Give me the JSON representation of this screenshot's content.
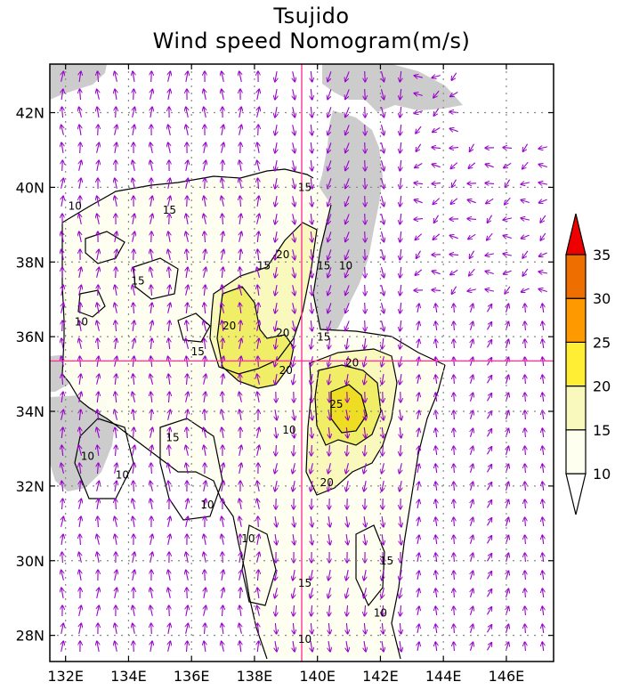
{
  "title": "Tsujido",
  "subtitle": "Wind speed Nomogram(m/s)",
  "map": {
    "lon_range": [
      131.5,
      147.5
    ],
    "lat_range": [
      27.3,
      43.3
    ],
    "x_ticks": [
      {
        "value": 132,
        "label": "132E"
      },
      {
        "value": 134,
        "label": "134E"
      },
      {
        "value": 136,
        "label": "136E"
      },
      {
        "value": 138,
        "label": "138E"
      },
      {
        "value": 140,
        "label": "140E"
      },
      {
        "value": 142,
        "label": "142E"
      },
      {
        "value": 144,
        "label": "144E"
      },
      {
        "value": 146,
        "label": "146E"
      }
    ],
    "y_ticks": [
      {
        "value": 28,
        "label": "28N"
      },
      {
        "value": 30,
        "label": "30N"
      },
      {
        "value": 32,
        "label": "32N"
      },
      {
        "value": 34,
        "label": "34N"
      },
      {
        "value": 36,
        "label": "36N"
      },
      {
        "value": 38,
        "label": "38N"
      },
      {
        "value": 40,
        "label": "40N"
      },
      {
        "value": 42,
        "label": "42N"
      }
    ],
    "gridlines": "dotted",
    "crosshair": {
      "lon": 139.5,
      "lat": 35.35,
      "color": "#ff3399"
    },
    "land_color": "#cccccc",
    "vector_color": "#9900cc",
    "contour_labels": [
      {
        "text": "10",
        "lon": 132.3,
        "lat": 39.4
      },
      {
        "text": "15",
        "lon": 135.3,
        "lat": 39.3
      },
      {
        "text": "15",
        "lon": 139.6,
        "lat": 39.9
      },
      {
        "text": "15",
        "lon": 138.3,
        "lat": 37.8
      },
      {
        "text": "20",
        "lon": 138.9,
        "lat": 38.1
      },
      {
        "text": "15",
        "lon": 140.2,
        "lat": 37.8
      },
      {
        "text": "10",
        "lon": 140.9,
        "lat": 37.8
      },
      {
        "text": "15",
        "lon": 134.3,
        "lat": 37.4
      },
      {
        "text": "10",
        "lon": 132.5,
        "lat": 36.3
      },
      {
        "text": "20",
        "lon": 137.2,
        "lat": 36.2
      },
      {
        "text": "20",
        "lon": 138.9,
        "lat": 36.0
      },
      {
        "text": "15",
        "lon": 136.2,
        "lat": 35.5
      },
      {
        "text": "15",
        "lon": 140.2,
        "lat": 35.9
      },
      {
        "text": "20",
        "lon": 139.0,
        "lat": 35.0
      },
      {
        "text": "20",
        "lon": 141.1,
        "lat": 35.2
      },
      {
        "text": "25",
        "lon": 140.6,
        "lat": 34.1
      },
      {
        "text": "15",
        "lon": 135.4,
        "lat": 33.2
      },
      {
        "text": "10",
        "lon": 139.1,
        "lat": 33.4
      },
      {
        "text": "10",
        "lon": 132.7,
        "lat": 32.7
      },
      {
        "text": "10",
        "lon": 133.8,
        "lat": 32.2
      },
      {
        "text": "10",
        "lon": 136.5,
        "lat": 31.4
      },
      {
        "text": "20",
        "lon": 140.3,
        "lat": 32.0
      },
      {
        "text": "10",
        "lon": 137.8,
        "lat": 30.5
      },
      {
        "text": "15",
        "lon": 142.2,
        "lat": 29.9
      },
      {
        "text": "15",
        "lon": 139.6,
        "lat": 29.3
      },
      {
        "text": "10",
        "lon": 142.0,
        "lat": 28.5
      },
      {
        "text": "10",
        "lon": 139.6,
        "lat": 27.8
      }
    ]
  },
  "colorbar": {
    "levels": [
      {
        "label": "10",
        "value": 10
      },
      {
        "label": "15",
        "value": 15
      },
      {
        "label": "20",
        "value": 20
      },
      {
        "label": "25",
        "value": 25
      },
      {
        "label": "30",
        "value": 30
      },
      {
        "label": "35",
        "value": 35
      }
    ],
    "colors": [
      "#ffffff",
      "#fffff0",
      "#f9f9bd",
      "#ffee33",
      "#ff9900",
      "#ee6f00",
      "#ee0000"
    ]
  }
}
